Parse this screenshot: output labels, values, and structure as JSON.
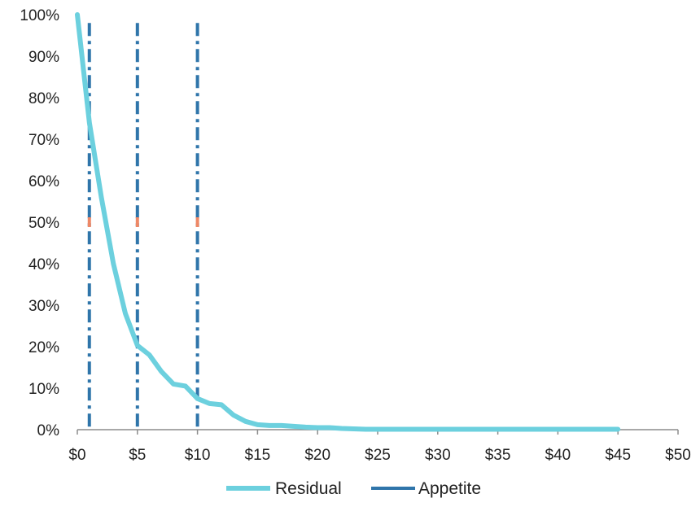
{
  "chart_data": {
    "type": "line",
    "title": "",
    "xlabel": "",
    "ylabel": "",
    "xlim": [
      0,
      50
    ],
    "ylim": [
      0,
      100
    ],
    "x_ticks": [
      0,
      5,
      10,
      15,
      20,
      25,
      30,
      35,
      40,
      45,
      50
    ],
    "x_tick_labels": [
      "$0",
      "$5",
      "$10",
      "$15",
      "$20",
      "$25",
      "$30",
      "$35",
      "$40",
      "$45",
      "$50"
    ],
    "y_ticks": [
      0,
      10,
      20,
      30,
      40,
      50,
      60,
      70,
      80,
      90,
      100
    ],
    "y_tick_labels": [
      "0%",
      "10%",
      "20%",
      "30%",
      "40%",
      "50%",
      "60%",
      "70%",
      "80%",
      "90%",
      "100%"
    ],
    "grid": false,
    "legend_position": "bottom",
    "series": [
      {
        "name": "Residual",
        "color": "#6cd0de",
        "style": "solid",
        "x": [
          0,
          1,
          2,
          3,
          4,
          5,
          6,
          7,
          8,
          9,
          10,
          11,
          12,
          13,
          14,
          15,
          16,
          17,
          18,
          19,
          20,
          21,
          22,
          23,
          24,
          25,
          26,
          27,
          28,
          29,
          30,
          31,
          32,
          33,
          34,
          35,
          36,
          37,
          38,
          39,
          40,
          41,
          42,
          43,
          44,
          45
        ],
        "y": [
          100,
          74,
          56,
          40,
          28,
          20.3,
          18,
          14,
          11,
          10.5,
          7.5,
          6.3,
          6,
          3.5,
          2,
          1.2,
          1,
          1,
          0.8,
          0.6,
          0.5,
          0.5,
          0.3,
          0.2,
          0.1,
          0.1,
          0.1,
          0.1,
          0.1,
          0.1,
          0.1,
          0.1,
          0.1,
          0.1,
          0.1,
          0.1,
          0.1,
          0.1,
          0.1,
          0.1,
          0.1,
          0.1,
          0.1,
          0.1,
          0.1,
          0.1
        ]
      }
    ],
    "appetite": {
      "name": "Appetite",
      "color": "#2f75aa",
      "style": "dash-dot",
      "x_values": [
        1,
        5,
        10
      ],
      "y_range": [
        0,
        98
      ]
    },
    "markers": {
      "color": "#ee8866",
      "points": [
        {
          "x": 1,
          "y": 50
        },
        {
          "x": 5,
          "y": 50
        },
        {
          "x": 10,
          "y": 50
        }
      ]
    }
  }
}
